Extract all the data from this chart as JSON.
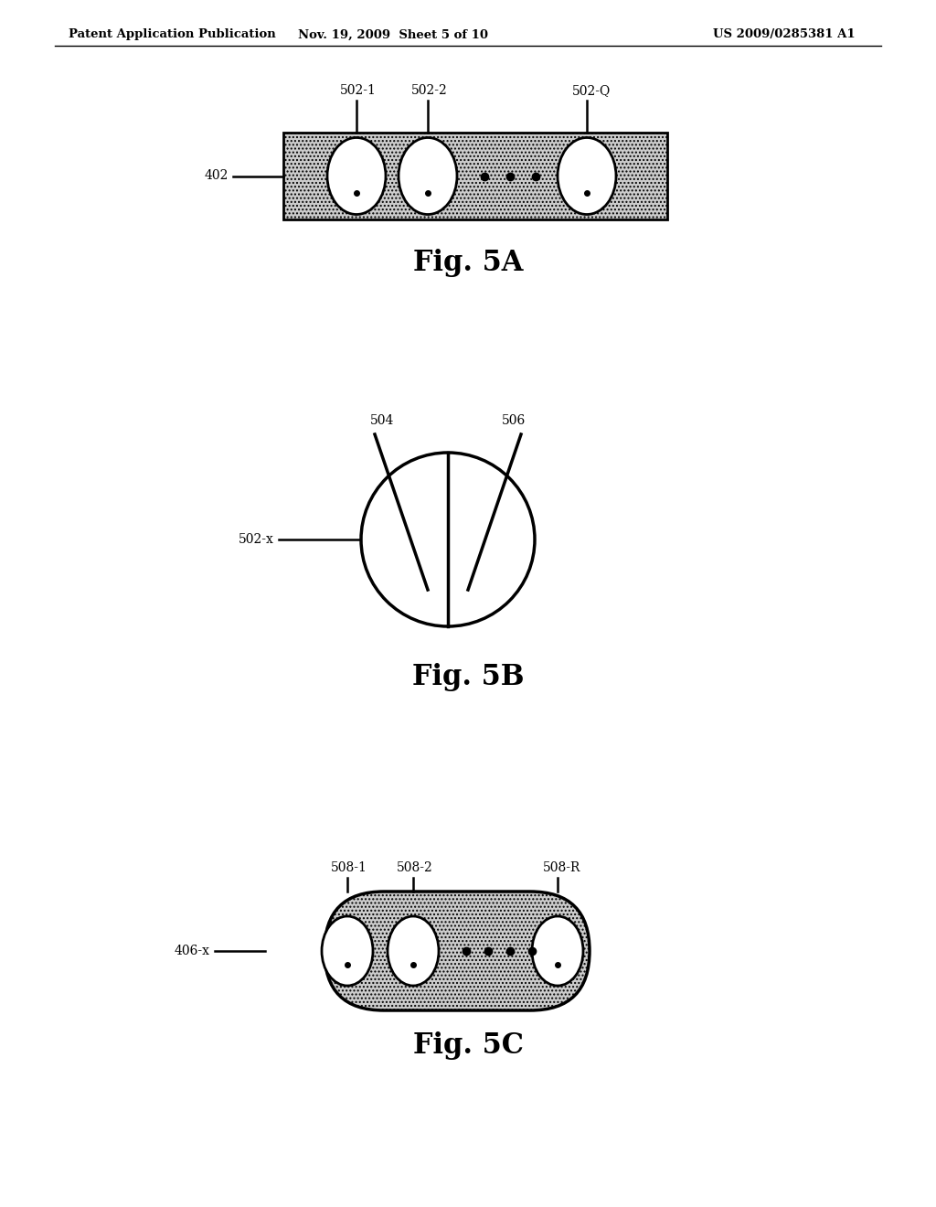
{
  "bg_color": "#ffffff",
  "header_left": "Patent Application Publication",
  "header_mid": "Nov. 19, 2009  Sheet 5 of 10",
  "header_right": "US 2009/0285381 A1",
  "fig5a_label": "Fig. 5A",
  "fig5b_label": "Fig. 5B",
  "fig5c_label": "Fig. 5C",
  "hatch_color": "#aaaaaa",
  "label_402": "402",
  "label_5021": "502-1",
  "label_5022": "502-2",
  "label_502Q": "502-Q",
  "label_504": "504",
  "label_506": "506",
  "label_502x": "502-x",
  "label_406x": "406-x",
  "label_5081": "508-1",
  "label_5082": "508-2",
  "label_508R": "508-R",
  "line_lw": 1.8,
  "fig_label_fontsize": 22
}
